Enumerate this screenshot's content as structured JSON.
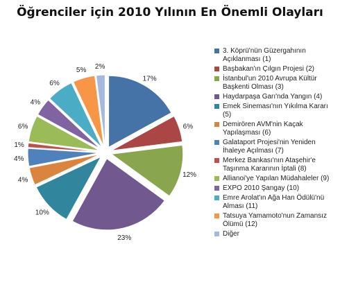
{
  "chart_data": {
    "type": "pie",
    "title": "Öğrenciler için 2010 Yılının En Önemli Olayları",
    "slices": [
      {
        "label": "3. Köprü'nün Güzergahının Açıklanması (1)",
        "value": 17,
        "display": "17%",
        "color": "#4572a7"
      },
      {
        "label": "Başbakan'ın Çılgın Projesi (2)",
        "value": 6,
        "display": "6%",
        "color": "#aa4643"
      },
      {
        "label": "İstanbul'un 2010 Avrupa Kültür Başkenti Olması (3)",
        "value": 12,
        "display": "12%",
        "color": "#89a54e"
      },
      {
        "label": "Haydarpaşa Garı'nda Yangın (4)",
        "value": 23,
        "display": "23%",
        "color": "#71588f"
      },
      {
        "label": "Emek Sineması'nın Yıkılma Kararı (5)",
        "value": 10,
        "display": "10%",
        "color": "#31859c"
      },
      {
        "label": "Demirören AVM'nin Kaçak Yapılaşması (6)",
        "value": 4,
        "display": "4%",
        "color": "#db843d"
      },
      {
        "label": "Galataport Projesi'nin Yeniden İhaleye Açılması (7)",
        "value": 4,
        "display": "4%",
        "color": "#4f81bd"
      },
      {
        "label": "Merkez Bankası'nın Ataşehir'e Taşınma Kararının İptali (8)",
        "value": 1,
        "display": "1%",
        "color": "#c0504d"
      },
      {
        "label": "Allianoi'ye Yapılan Müdahaleler (9)",
        "value": 6,
        "display": "6%",
        "color": "#9bbb59"
      },
      {
        "label": "EXPO 2010 Şangay (10)",
        "value": 4,
        "display": "4%",
        "color": "#8064a2"
      },
      {
        "label": "Emre Arolat'ın Ağa Han Ödülü'nü Alması (11)",
        "value": 6,
        "display": "6%",
        "color": "#4bacc6"
      },
      {
        "label": "Tatsuya Yamamoto'nun Zamansız Ölümü (12)",
        "value": 5,
        "display": "5%",
        "color": "#f79646"
      },
      {
        "label": "Diğer",
        "value": 2,
        "display": "2%",
        "color": "#a5b9dd"
      }
    ],
    "legend_position": "right"
  }
}
